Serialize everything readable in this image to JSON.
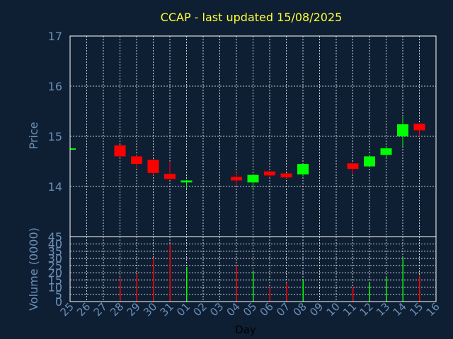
{
  "colors": {
    "background": "#0f1f33",
    "title": "#ffff33",
    "axis_text": "#6a8fb8",
    "grid": "#ffffff",
    "up": "#00ff00",
    "down": "#ff0000",
    "frame": "#ffffff",
    "xlabel": "#000000"
  },
  "chart_data": [
    {
      "type": "candlestick",
      "title": "CCAP - last updated 15/08/2025",
      "ylabel": "Price",
      "ylim": [
        13.0,
        17.0
      ],
      "yticks": [
        "14",
        "15",
        "16",
        "17"
      ],
      "grid": true,
      "categories": [
        "25",
        "26",
        "27",
        "28",
        "29",
        "30",
        "31",
        "01",
        "02",
        "03",
        "04",
        "05",
        "06",
        "07",
        "08",
        "09",
        "10",
        "11",
        "12",
        "13",
        "14",
        "15",
        "16"
      ],
      "candles": [
        {
          "day": "25",
          "open": 14.76,
          "high": 14.76,
          "low": 14.75,
          "close": 14.75,
          "dir": "up"
        },
        {
          "day": "28",
          "open": 14.82,
          "high": 14.83,
          "low": 14.58,
          "close": 14.6,
          "dir": "down"
        },
        {
          "day": "29",
          "open": 14.6,
          "high": 14.62,
          "low": 14.36,
          "close": 14.45,
          "dir": "down"
        },
        {
          "day": "30",
          "open": 14.53,
          "high": 14.55,
          "low": 14.22,
          "close": 14.27,
          "dir": "down"
        },
        {
          "day": "31",
          "open": 14.25,
          "high": 14.5,
          "low": 14.13,
          "close": 14.15,
          "dir": "down"
        },
        {
          "day": "01",
          "open": 14.08,
          "high": 14.13,
          "low": 13.95,
          "close": 14.12,
          "dir": "up"
        },
        {
          "day": "04",
          "open": 14.19,
          "high": 14.28,
          "low": 14.02,
          "close": 14.12,
          "dir": "down"
        },
        {
          "day": "05",
          "open": 14.08,
          "high": 14.25,
          "low": 13.95,
          "close": 14.23,
          "dir": "up"
        },
        {
          "day": "06",
          "open": 14.3,
          "high": 14.31,
          "low": 14.18,
          "close": 14.22,
          "dir": "down"
        },
        {
          "day": "07",
          "open": 14.26,
          "high": 14.27,
          "low": 14.16,
          "close": 14.18,
          "dir": "down"
        },
        {
          "day": "08",
          "open": 14.24,
          "high": 14.45,
          "low": 14.2,
          "close": 14.45,
          "dir": "up"
        },
        {
          "day": "11",
          "open": 14.46,
          "high": 14.47,
          "low": 14.25,
          "close": 14.35,
          "dir": "down"
        },
        {
          "day": "12",
          "open": 14.4,
          "high": 14.63,
          "low": 14.38,
          "close": 14.6,
          "dir": "up"
        },
        {
          "day": "13",
          "open": 14.63,
          "high": 14.79,
          "low": 14.57,
          "close": 14.76,
          "dir": "up"
        },
        {
          "day": "14",
          "open": 15.0,
          "high": 15.38,
          "low": 14.8,
          "close": 15.24,
          "dir": "up"
        },
        {
          "day": "15",
          "open": 15.25,
          "high": 15.26,
          "low": 15.0,
          "close": 15.12,
          "dir": "down"
        }
      ]
    },
    {
      "type": "bar",
      "ylabel": "Volume (0000)",
      "xlabel": "Day",
      "ylim": [
        0,
        45
      ],
      "yticks": [
        "0",
        "5",
        "10",
        "15",
        "20",
        "25",
        "30",
        "35",
        "40",
        "45"
      ],
      "grid": true,
      "categories": [
        "25",
        "26",
        "27",
        "28",
        "29",
        "30",
        "31",
        "01",
        "02",
        "03",
        "04",
        "05",
        "06",
        "07",
        "08",
        "09",
        "10",
        "11",
        "12",
        "13",
        "14",
        "15",
        "16"
      ],
      "bars": [
        {
          "day": "28",
          "value": 16,
          "dir": "down"
        },
        {
          "day": "29",
          "value": 19,
          "dir": "down"
        },
        {
          "day": "30",
          "value": 30,
          "dir": "down"
        },
        {
          "day": "31",
          "value": 40,
          "dir": "down"
        },
        {
          "day": "01",
          "value": 24,
          "dir": "up"
        },
        {
          "day": "04",
          "value": 25,
          "dir": "down"
        },
        {
          "day": "05",
          "value": 21,
          "dir": "up"
        },
        {
          "day": "06",
          "value": 10,
          "dir": "down"
        },
        {
          "day": "07",
          "value": 13,
          "dir": "down"
        },
        {
          "day": "08",
          "value": 15,
          "dir": "up"
        },
        {
          "day": "11",
          "value": 10,
          "dir": "down"
        },
        {
          "day": "12",
          "value": 13,
          "dir": "up"
        },
        {
          "day": "13",
          "value": 17,
          "dir": "up"
        },
        {
          "day": "14",
          "value": 30,
          "dir": "up"
        },
        {
          "day": "15",
          "value": 18,
          "dir": "down"
        }
      ]
    }
  ]
}
